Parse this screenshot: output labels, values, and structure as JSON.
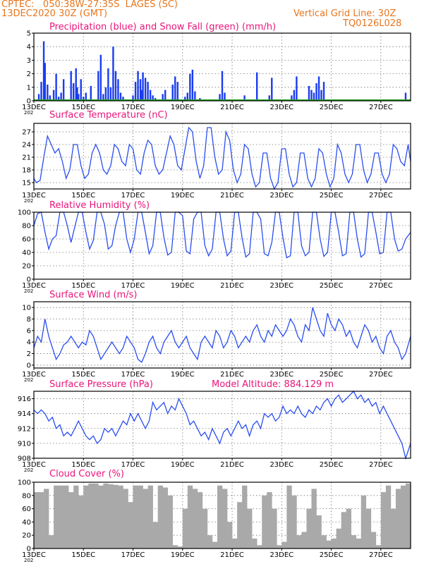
{
  "header": {
    "line1_left": "CPTEC:   050:38W-27:35S  LAGES (SC)",
    "line2_left": "13DEC2020 30Z (GMT)",
    "line2_right": "Vertical Grid Line: 30Z",
    "line3_right": "TQ0126L028"
  },
  "colors": {
    "precip": "#1a3cf0",
    "snow": "#1fa51f",
    "line": "#2a4ef0",
    "cloud": "#a9a9a9",
    "title": "#e8157a",
    "header": "#e8761d"
  },
  "x_labels": [
    "13DEC",
    "15DEC",
    "17DEC",
    "19DEC",
    "21DEC",
    "23DEC",
    "25DEC",
    "27DEC"
  ],
  "x_sublabel": "202",
  "chart_data": [
    {
      "id": "precip",
      "type": "bar",
      "title": "Precipitation (blue) and Snow Fall (green) (mm/h)",
      "ylim": [
        0,
        5
      ],
      "yticks": [
        0,
        1,
        2,
        3,
        4,
        5
      ],
      "x_range_days": [
        0,
        15.2
      ],
      "series": [
        {
          "name": "Precipitation (blue)",
          "x_days": [
            0.2,
            0.3,
            0.4,
            0.45,
            0.55,
            0.65,
            0.8,
            0.9,
            1.0,
            1.1,
            1.2,
            1.5,
            1.6,
            1.7,
            1.75,
            1.8,
            1.9,
            2.0,
            2.1,
            2.3,
            2.6,
            2.7,
            2.8,
            2.9,
            3.0,
            3.1,
            3.2,
            3.3,
            3.4,
            3.5,
            3.6,
            4.0,
            4.1,
            4.2,
            4.3,
            4.35,
            4.4,
            4.5,
            4.6,
            4.7,
            4.8,
            4.9,
            5.2,
            5.3,
            5.6,
            5.7,
            5.8,
            6.1,
            6.2,
            6.3,
            6.4,
            6.5,
            6.7,
            7.5,
            7.6,
            7.7,
            8.5,
            9.0,
            9.5,
            9.6,
            10.4,
            10.5,
            10.6,
            11.1,
            11.2,
            11.3,
            11.4,
            11.5,
            11.6,
            11.7,
            15.0
          ],
          "values": [
            0.5,
            1.4,
            4.4,
            2.8,
            1.2,
            0.4,
            0.8,
            2.0,
            0.3,
            0.6,
            1.6,
            2.2,
            1.3,
            2.4,
            1.0,
            0.5,
            1.6,
            0.3,
            0.6,
            1.1,
            2.2,
            3.4,
            0.5,
            1.0,
            2.4,
            1.0,
            4.0,
            2.2,
            1.6,
            0.6,
            0.3,
            0.4,
            1.4,
            2.2,
            1.6,
            0.8,
            2.1,
            1.7,
            1.4,
            0.8,
            0.4,
            0.2,
            0.5,
            0.8,
            1.2,
            1.8,
            1.4,
            0.3,
            0.6,
            2.0,
            2.3,
            0.7,
            0.2,
            0.5,
            2.2,
            0.6,
            0.4,
            2.1,
            0.4,
            1.7,
            0.4,
            0.8,
            1.8,
            1.1,
            0.8,
            0.6,
            1.3,
            1.8,
            0.8,
            1.4,
            0.6
          ]
        },
        {
          "name": "Snow Fall (green)",
          "x_days": [
            0,
            15.2
          ],
          "values": [
            0.05,
            0.05
          ]
        }
      ]
    },
    {
      "id": "temp",
      "type": "line",
      "title": "Surface Temperature (nC)",
      "ylim": [
        13.5,
        29
      ],
      "yticks": [
        15,
        18,
        21,
        24,
        27
      ],
      "x_days": [
        0,
        0.1,
        0.25,
        0.4,
        0.55,
        0.7,
        0.85,
        1.0,
        1.15,
        1.3,
        1.45,
        1.6,
        1.75,
        1.9,
        2.05,
        2.2,
        2.35,
        2.5,
        2.65,
        2.8,
        2.95,
        3.1,
        3.25,
        3.4,
        3.55,
        3.7,
        3.85,
        4.0,
        4.15,
        4.3,
        4.45,
        4.6,
        4.75,
        4.9,
        5.05,
        5.2,
        5.35,
        5.5,
        5.65,
        5.8,
        5.95,
        6.1,
        6.25,
        6.4,
        6.55,
        6.7,
        6.85,
        7.0,
        7.15,
        7.3,
        7.45,
        7.6,
        7.75,
        7.9,
        8.05,
        8.2,
        8.35,
        8.5,
        8.65,
        8.8,
        8.95,
        9.1,
        9.25,
        9.4,
        9.55,
        9.7,
        9.85,
        10.0,
        10.15,
        10.3,
        10.45,
        10.6,
        10.75,
        10.9,
        11.05,
        11.2,
        11.35,
        11.5,
        11.65,
        11.8,
        11.95,
        12.1,
        12.25,
        12.4,
        12.55,
        12.7,
        12.85,
        13.0,
        13.15,
        13.3,
        13.45,
        13.6,
        13.75,
        13.9,
        14.05,
        14.2,
        14.35,
        14.5,
        14.65,
        14.8,
        14.95,
        15.1,
        15.2
      ],
      "values": [
        16,
        15,
        15.5,
        21,
        26,
        24,
        22,
        23,
        20,
        16,
        18,
        24,
        24,
        19,
        16,
        17,
        22,
        24,
        22,
        18,
        17,
        19,
        24,
        23,
        20,
        19,
        24,
        23,
        18,
        17,
        22,
        25,
        24,
        19,
        17,
        18,
        22,
        26,
        24,
        19,
        18,
        23,
        28,
        27,
        20,
        16,
        19,
        28,
        28,
        21,
        17,
        18,
        27,
        25,
        18,
        15,
        17,
        24,
        23,
        17,
        14,
        15,
        22,
        22,
        16,
        13.5,
        15,
        23,
        23,
        17,
        14,
        15,
        22,
        22,
        16,
        14,
        16,
        23,
        22,
        17,
        14,
        16,
        24,
        22,
        17,
        15,
        17,
        24,
        24,
        18,
        15,
        17,
        22,
        22,
        17,
        15,
        17,
        24,
        23,
        20,
        19,
        24,
        20
      ]
    },
    {
      "id": "rh",
      "type": "line",
      "title": "Relative Humidity (%)",
      "ylim": [
        0,
        100
      ],
      "yticks": [
        0,
        20,
        40,
        60,
        80,
        100
      ],
      "x_days": [
        0,
        0.15,
        0.3,
        0.45,
        0.6,
        0.75,
        0.9,
        1.05,
        1.2,
        1.35,
        1.5,
        1.65,
        1.8,
        1.95,
        2.1,
        2.25,
        2.4,
        2.55,
        2.7,
        2.85,
        3.0,
        3.15,
        3.3,
        3.45,
        3.6,
        3.75,
        3.9,
        4.05,
        4.2,
        4.35,
        4.5,
        4.65,
        4.8,
        4.95,
        5.1,
        5.25,
        5.4,
        5.55,
        5.7,
        5.85,
        6.0,
        6.15,
        6.3,
        6.45,
        6.6,
        6.75,
        6.9,
        7.05,
        7.2,
        7.35,
        7.5,
        7.65,
        7.8,
        7.95,
        8.1,
        8.25,
        8.4,
        8.55,
        8.7,
        8.85,
        9.0,
        9.15,
        9.3,
        9.45,
        9.6,
        9.75,
        9.9,
        10.05,
        10.2,
        10.35,
        10.5,
        10.65,
        10.8,
        10.95,
        11.1,
        11.25,
        11.4,
        11.55,
        11.7,
        11.85,
        12.0,
        12.15,
        12.3,
        12.45,
        12.6,
        12.75,
        12.9,
        13.05,
        13.2,
        13.35,
        13.5,
        13.65,
        13.8,
        13.95,
        14.1,
        14.25,
        14.4,
        14.55,
        14.7,
        14.85,
        15.0,
        15.2
      ],
      "values": [
        80,
        98,
        100,
        70,
        45,
        60,
        65,
        100,
        100,
        80,
        55,
        78,
        100,
        100,
        70,
        45,
        58,
        100,
        100,
        82,
        45,
        50,
        80,
        100,
        100,
        60,
        40,
        60,
        100,
        100,
        70,
        38,
        50,
        100,
        100,
        62,
        36,
        40,
        100,
        100,
        95,
        42,
        38,
        90,
        100,
        100,
        50,
        35,
        45,
        100,
        100,
        60,
        35,
        42,
        100,
        100,
        62,
        33,
        38,
        100,
        100,
        90,
        38,
        35,
        55,
        100,
        100,
        62,
        32,
        35,
        100,
        100,
        50,
        35,
        40,
        100,
        100,
        60,
        34,
        40,
        100,
        100,
        70,
        35,
        38,
        100,
        100,
        60,
        33,
        38,
        100,
        100,
        70,
        38,
        40,
        100,
        100,
        60,
        42,
        45,
        60,
        70
      ]
    },
    {
      "id": "wind",
      "type": "line",
      "title": "Surface Wind (m/s)",
      "ylim": [
        -0.5,
        11
      ],
      "yticks": [
        0,
        2,
        4,
        6,
        8,
        10
      ],
      "x_days": [
        0,
        0.15,
        0.3,
        0.45,
        0.6,
        0.75,
        0.9,
        1.05,
        1.2,
        1.35,
        1.5,
        1.65,
        1.8,
        1.95,
        2.1,
        2.25,
        2.4,
        2.55,
        2.7,
        2.85,
        3.0,
        3.15,
        3.3,
        3.45,
        3.6,
        3.75,
        3.9,
        4.05,
        4.2,
        4.35,
        4.5,
        4.65,
        4.8,
        4.95,
        5.1,
        5.25,
        5.4,
        5.55,
        5.7,
        5.85,
        6.0,
        6.15,
        6.3,
        6.45,
        6.6,
        6.75,
        6.9,
        7.05,
        7.2,
        7.35,
        7.5,
        7.65,
        7.8,
        7.95,
        8.1,
        8.25,
        8.4,
        8.55,
        8.7,
        8.85,
        9.0,
        9.15,
        9.3,
        9.45,
        9.6,
        9.75,
        9.9,
        10.05,
        10.2,
        10.35,
        10.5,
        10.65,
        10.8,
        10.95,
        11.1,
        11.25,
        11.4,
        11.55,
        11.7,
        11.85,
        12.0,
        12.15,
        12.3,
        12.45,
        12.6,
        12.75,
        12.9,
        13.05,
        13.2,
        13.35,
        13.5,
        13.65,
        13.8,
        13.95,
        14.1,
        14.25,
        14.4,
        14.55,
        14.7,
        14.85,
        15.0,
        15.2
      ],
      "values": [
        3,
        5,
        4,
        8,
        5,
        3,
        1,
        2,
        3.5,
        4,
        5,
        4,
        3,
        4,
        3.5,
        6,
        5,
        3,
        1,
        2,
        3,
        4,
        3,
        2,
        3,
        5,
        4,
        3,
        1,
        0.5,
        2,
        4,
        5,
        3,
        2,
        4,
        5,
        6,
        4,
        3,
        4,
        5,
        3,
        2,
        1,
        4,
        5,
        4,
        3,
        6,
        5,
        3,
        4,
        6,
        5,
        3,
        4,
        5,
        4,
        6,
        7,
        5,
        4,
        6,
        5,
        7,
        6,
        5,
        6,
        8,
        7,
        5,
        4,
        7,
        6,
        10,
        8,
        6,
        5,
        9,
        7,
        6,
        8,
        7,
        5,
        6,
        4,
        3,
        5,
        7,
        6,
        4,
        5,
        3,
        2,
        5,
        6,
        4,
        3,
        1,
        2,
        5
      ]
    },
    {
      "id": "pressure",
      "type": "line",
      "title": "Surface Pressure (hPa)",
      "subtitle": "Model Altitude: 884.129  m",
      "ylim": [
        908,
        917
      ],
      "yticks": [
        908,
        910,
        912,
        914,
        916
      ],
      "x_days": [
        0,
        0.15,
        0.3,
        0.45,
        0.6,
        0.75,
        0.9,
        1.05,
        1.2,
        1.35,
        1.5,
        1.65,
        1.8,
        1.95,
        2.1,
        2.25,
        2.4,
        2.55,
        2.7,
        2.85,
        3.0,
        3.15,
        3.3,
        3.45,
        3.6,
        3.75,
        3.9,
        4.05,
        4.2,
        4.35,
        4.5,
        4.65,
        4.8,
        4.95,
        5.1,
        5.25,
        5.4,
        5.55,
        5.7,
        5.85,
        6.0,
        6.15,
        6.3,
        6.45,
        6.6,
        6.75,
        6.9,
        7.05,
        7.2,
        7.35,
        7.5,
        7.65,
        7.8,
        7.95,
        8.1,
        8.25,
        8.4,
        8.55,
        8.7,
        8.85,
        9.0,
        9.15,
        9.3,
        9.45,
        9.6,
        9.75,
        9.9,
        10.05,
        10.2,
        10.35,
        10.5,
        10.65,
        10.8,
        10.95,
        11.1,
        11.25,
        11.4,
        11.55,
        11.7,
        11.85,
        12.0,
        12.15,
        12.3,
        12.45,
        12.6,
        12.75,
        12.9,
        13.05,
        13.2,
        13.35,
        13.5,
        13.65,
        13.8,
        13.95,
        14.1,
        14.25,
        14.4,
        14.55,
        14.7,
        14.85,
        15.0,
        15.2
      ],
      "values": [
        914.5,
        914,
        914.5,
        914,
        913,
        913.5,
        912,
        912.5,
        911,
        911.5,
        911,
        912,
        913,
        912,
        911,
        910.5,
        911,
        910,
        910.5,
        912,
        911.5,
        912,
        911,
        912,
        913,
        912.5,
        914,
        913,
        914,
        913,
        912,
        913,
        915.5,
        914.5,
        915,
        915.5,
        914,
        915,
        914.5,
        916,
        915,
        914,
        912.5,
        913,
        912,
        911,
        911.5,
        910.5,
        912,
        911,
        910,
        911.5,
        912,
        911,
        912,
        913,
        912,
        912.5,
        911,
        912.5,
        913,
        912,
        914,
        913.5,
        914,
        913,
        913.5,
        915,
        914,
        914.5,
        914,
        915,
        914,
        913.5,
        914.5,
        914,
        915,
        914.5,
        915.5,
        916,
        915,
        916,
        916.5,
        915.5,
        916,
        916.5,
        917,
        916,
        916.5,
        915.5,
        916,
        915,
        915.5,
        914,
        915,
        914,
        913,
        912,
        911,
        910,
        908,
        910
      ]
    },
    {
      "id": "cloud",
      "type": "area",
      "title": "Cloud Cover (%)",
      "ylim": [
        0,
        100
      ],
      "yticks": [
        0,
        20,
        40,
        60,
        80,
        100
      ],
      "x_days": [
        0,
        0.2,
        0.4,
        0.6,
        0.8,
        1.0,
        1.2,
        1.4,
        1.6,
        1.8,
        2.0,
        2.2,
        2.4,
        2.6,
        2.8,
        3.0,
        3.2,
        3.4,
        3.6,
        3.8,
        4.0,
        4.2,
        4.4,
        4.6,
        4.8,
        5.0,
        5.2,
        5.4,
        5.6,
        5.8,
        6.0,
        6.2,
        6.4,
        6.6,
        6.8,
        7.0,
        7.2,
        7.4,
        7.6,
        7.8,
        8.0,
        8.2,
        8.4,
        8.6,
        8.8,
        9.0,
        9.2,
        9.4,
        9.6,
        9.8,
        10.0,
        10.2,
        10.4,
        10.6,
        10.8,
        11.0,
        11.2,
        11.4,
        11.6,
        11.8,
        12.0,
        12.2,
        12.4,
        12.6,
        12.8,
        13.0,
        13.2,
        13.4,
        13.6,
        13.8,
        14.0,
        14.2,
        14.4,
        14.6,
        14.8,
        15.0,
        15.2
      ],
      "values": [
        85,
        85,
        90,
        20,
        95,
        95,
        95,
        85,
        95,
        80,
        95,
        98,
        98,
        95,
        98,
        97,
        96,
        95,
        90,
        70,
        95,
        95,
        90,
        95,
        40,
        95,
        92,
        80,
        5,
        3,
        60,
        95,
        90,
        85,
        60,
        20,
        10,
        95,
        90,
        40,
        15,
        70,
        95,
        60,
        15,
        5,
        80,
        85,
        60,
        5,
        10,
        95,
        80,
        20,
        25,
        60,
        90,
        50,
        20,
        12,
        15,
        30,
        55,
        60,
        20,
        15,
        80,
        60,
        25,
        5,
        85,
        95,
        60,
        90,
        95,
        98,
        90
      ]
    }
  ]
}
